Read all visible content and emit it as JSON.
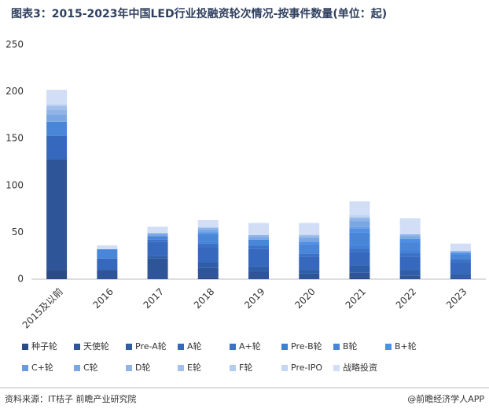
{
  "chart_data": {
    "type": "stacked_bar",
    "title": "图表3：2015-2023年中国LED行业投融资轮次情况-按事件数量(单位：起)",
    "source": "资料来源：IT桔子 前瞻产业研究院",
    "credit": "@前瞻经济学人APP",
    "categories": [
      "2015及以前",
      "2016",
      "2017",
      "2018",
      "2019",
      "2020",
      "2021",
      "2022",
      "2023"
    ],
    "ylim": [
      0,
      250
    ],
    "yticks": [
      0,
      50,
      100,
      150,
      200,
      250
    ],
    "series": [
      {
        "name": "种子轮",
        "color": "#2a4c86",
        "values": [
          10,
          0,
          0,
          2,
          0,
          0,
          2,
          0,
          0
        ]
      },
      {
        "name": "天使轮",
        "color": "#2e5597",
        "values": [
          118,
          10,
          22,
          10,
          8,
          6,
          5,
          4,
          2
        ]
      },
      {
        "name": "Pre-A轮",
        "color": "#2f5ea8",
        "values": [
          0,
          0,
          3,
          6,
          6,
          4,
          8,
          6,
          3
        ]
      },
      {
        "name": "A轮",
        "color": "#3668bd",
        "values": [
          25,
          12,
          15,
          16,
          18,
          14,
          14,
          14,
          13
        ]
      },
      {
        "name": "A+轮",
        "color": "#3b72c8",
        "values": [
          0,
          0,
          2,
          4,
          4,
          3,
          4,
          4,
          3
        ]
      },
      {
        "name": "Pre-B轮",
        "color": "#3f7fd6",
        "values": [
          0,
          0,
          0,
          2,
          0,
          2,
          3,
          3,
          0
        ]
      },
      {
        "name": "B轮",
        "color": "#4a86d8",
        "values": [
          15,
          10,
          4,
          8,
          6,
          8,
          14,
          8,
          5
        ]
      },
      {
        "name": "B+轮",
        "color": "#4f8fe6",
        "values": [
          0,
          0,
          0,
          2,
          0,
          3,
          4,
          4,
          2
        ]
      },
      {
        "name": "C+轮",
        "color": "#6a9be0",
        "values": [
          0,
          0,
          0,
          0,
          0,
          0,
          2,
          0,
          0
        ]
      },
      {
        "name": "C轮",
        "color": "#7aa7e3",
        "values": [
          8,
          0,
          3,
          3,
          3,
          4,
          6,
          3,
          2
        ]
      },
      {
        "name": "D轮",
        "color": "#8fb4e8",
        "values": [
          5,
          0,
          0,
          2,
          2,
          2,
          3,
          2,
          0
        ]
      },
      {
        "name": "E轮",
        "color": "#a3c0ec",
        "values": [
          4,
          0,
          0,
          0,
          0,
          1,
          1,
          0,
          0
        ]
      },
      {
        "name": "F轮",
        "color": "#b3ccf0",
        "values": [
          0,
          0,
          0,
          0,
          0,
          0,
          1,
          0,
          0
        ]
      },
      {
        "name": "Pre-IPO",
        "color": "#c4d6f3",
        "values": [
          2,
          0,
          0,
          0,
          0,
          1,
          2,
          0,
          0
        ]
      },
      {
        "name": "战略投资",
        "color": "#d2def5",
        "values": [
          15,
          4,
          7,
          8,
          13,
          12,
          14,
          17,
          8
        ]
      }
    ]
  }
}
